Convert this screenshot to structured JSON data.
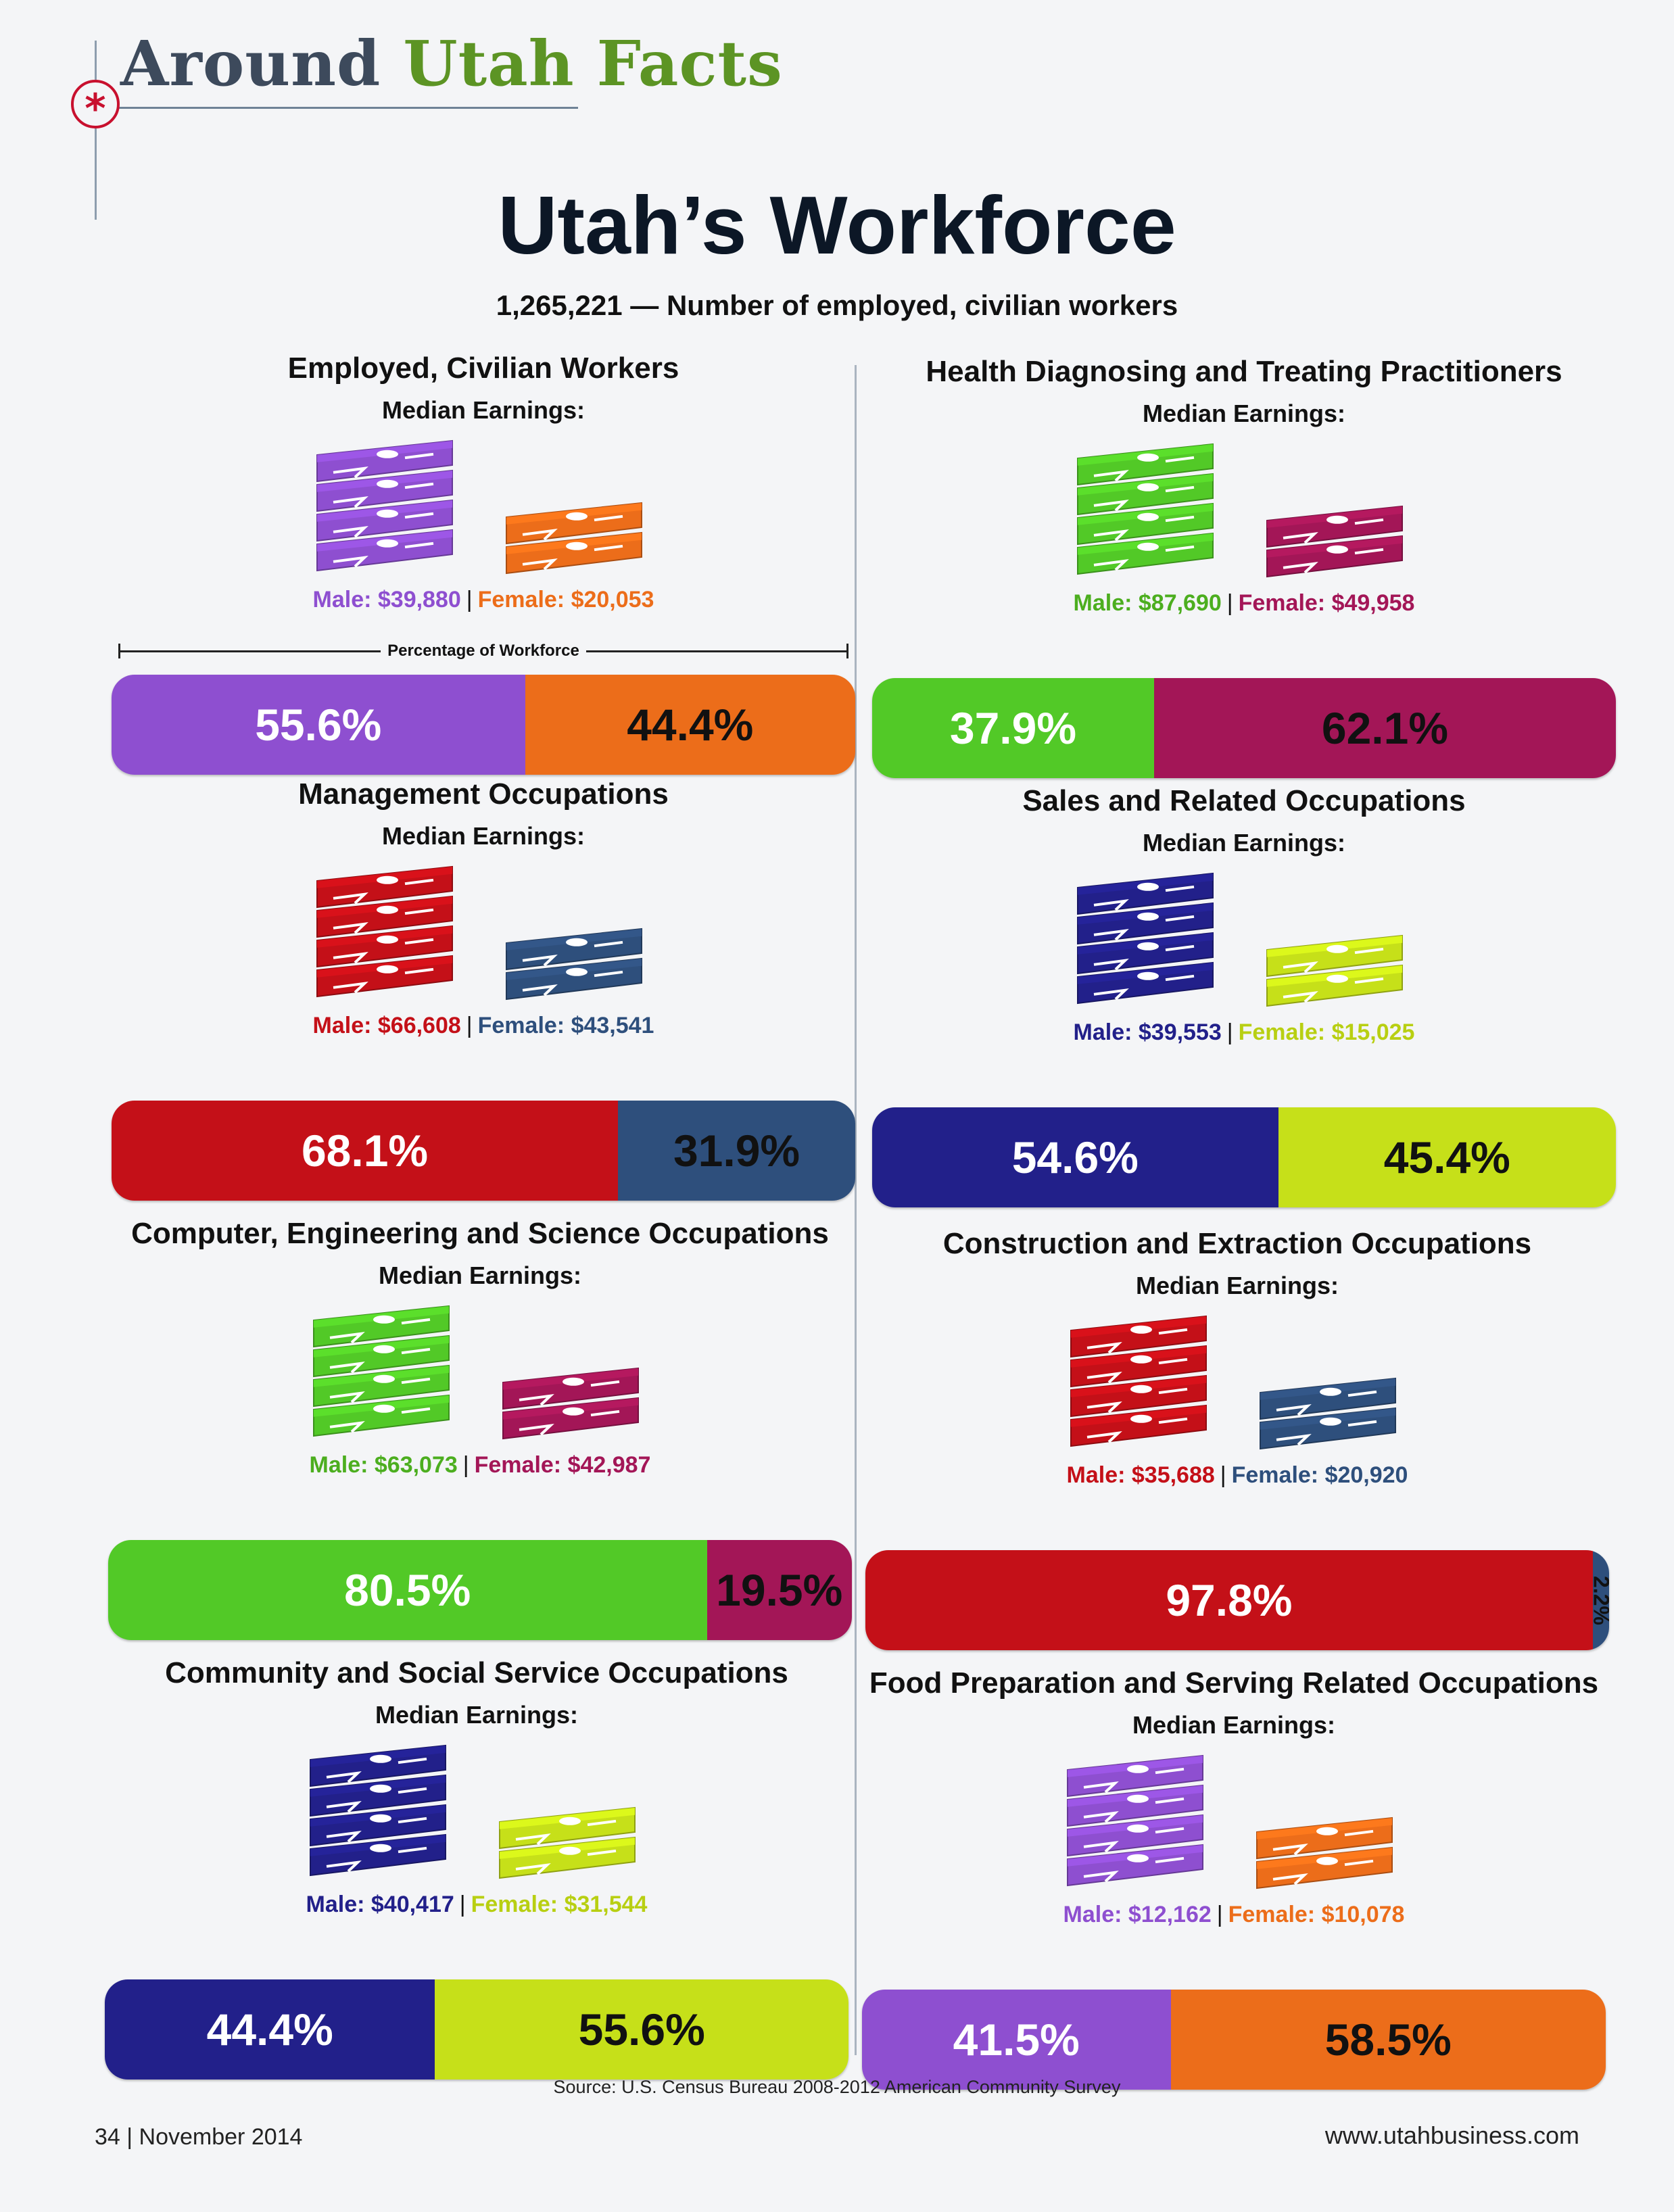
{
  "header": {
    "title_part1": "Around",
    "title_part2": "Utah Facts"
  },
  "main": {
    "title": "Utah’s Workforce",
    "subtitle": "1,265,221 — Number of employed, civilian workers",
    "median_label": "Median Earnings:",
    "pow_label": "Percentage of Workforce"
  },
  "footer": {
    "source": "Source: U.S. Census Bureau 2008-2012 American Community Survey",
    "page": "34 | November 2014",
    "website": "www.utahbusiness.com"
  },
  "chart_data": [
    {
      "type": "bar",
      "title": "Employed, Civilian Workers",
      "male_label": "Male: $39,880",
      "female_label": "Female: $20,053",
      "male_earnings": 39880,
      "female_earnings": 20053,
      "male_pct": 55.6,
      "female_pct": 44.4,
      "male_pct_label": "55.6%",
      "female_pct_label": "44.4%",
      "male_color": "#8e4fd0",
      "female_color": "#ec6d1a",
      "male_text": "#8e4fd0",
      "female_text": "#ec6d1a",
      "male_pct_text": "#ffffff",
      "female_pct_text": "#111111"
    },
    {
      "type": "bar",
      "title": "Health Diagnosing and Treating Practitioners",
      "male_label": "Male: $87,690",
      "female_label": "Female: $49,958",
      "male_earnings": 87690,
      "female_earnings": 49958,
      "male_pct": 37.9,
      "female_pct": 62.1,
      "male_pct_label": "37.9%",
      "female_pct_label": "62.1%",
      "male_color": "#52c927",
      "female_color": "#a31657",
      "male_text": "#4cae1f",
      "female_text": "#a31657",
      "male_pct_text": "#ffffff",
      "female_pct_text": "#111111"
    },
    {
      "type": "bar",
      "title": "Management Occupations",
      "male_label": "Male: $66,608",
      "female_label": "Female: $43,541",
      "male_earnings": 66608,
      "female_earnings": 43541,
      "male_pct": 68.1,
      "female_pct": 31.9,
      "male_pct_label": "68.1%",
      "female_pct_label": "31.9%",
      "male_color": "#c41018",
      "female_color": "#2e4f7c",
      "male_text": "#c41018",
      "female_text": "#2e4f7c",
      "male_pct_text": "#ffffff",
      "female_pct_text": "#111111"
    },
    {
      "type": "bar",
      "title": "Sales and Related Occupations",
      "male_label": "Male: $39,553",
      "female_label": "Female: $15,025",
      "male_earnings": 39553,
      "female_earnings": 15025,
      "male_pct": 54.6,
      "female_pct": 45.4,
      "male_pct_label": "54.6%",
      "female_pct_label": "45.4%",
      "male_color": "#22208a",
      "female_color": "#c6e019",
      "male_text": "#22208a",
      "female_text": "#b8cf12",
      "male_pct_text": "#ffffff",
      "female_pct_text": "#111111"
    },
    {
      "type": "bar",
      "title": "Computer, Engineering and Science Occupations",
      "male_label": "Male: $63,073",
      "female_label": "Female: $42,987",
      "male_earnings": 63073,
      "female_earnings": 42987,
      "male_pct": 80.5,
      "female_pct": 19.5,
      "male_pct_label": "80.5%",
      "female_pct_label": "19.5%",
      "male_color": "#52c927",
      "female_color": "#a31657",
      "male_text": "#4cae1f",
      "female_text": "#a31657",
      "male_pct_text": "#ffffff",
      "female_pct_text": "#111111"
    },
    {
      "type": "bar",
      "title": "Construction and Extraction Occupations",
      "male_label": "Male: $35,688",
      "female_label": "Female: $20,920",
      "male_earnings": 35688,
      "female_earnings": 20920,
      "male_pct": 97.8,
      "female_pct": 2.2,
      "male_pct_label": "97.8%",
      "female_pct_label": "2.2%",
      "male_color": "#c41018",
      "female_color": "#2e4f7c",
      "male_text": "#c41018",
      "female_text": "#2e4f7c",
      "male_pct_text": "#ffffff",
      "female_pct_text": "#111111"
    },
    {
      "type": "bar",
      "title": "Community and Social Service Occupations",
      "male_label": "Male: $40,417",
      "female_label": "Female: $31,544",
      "male_earnings": 40417,
      "female_earnings": 31544,
      "male_pct": 44.4,
      "female_pct": 55.6,
      "male_pct_label": "44.4%",
      "female_pct_label": "55.6%",
      "male_color": "#22208a",
      "female_color": "#c6e019",
      "male_text": "#22208a",
      "female_text": "#b8cf12",
      "male_pct_text": "#ffffff",
      "female_pct_text": "#111111"
    },
    {
      "type": "bar",
      "title": "Food Preparation and Serving Related Occupations",
      "male_label": "Male: $12,162",
      "female_label": "Female: $10,078",
      "male_earnings": 12162,
      "female_earnings": 10078,
      "male_pct": 41.5,
      "female_pct": 58.5,
      "male_pct_label": "41.5%",
      "female_pct_label": "58.5%",
      "male_color": "#8e4fd0",
      "female_color": "#ec6d1a",
      "male_text": "#8e4fd0",
      "female_text": "#ec6d1a",
      "male_pct_text": "#ffffff",
      "female_pct_text": "#111111"
    }
  ]
}
